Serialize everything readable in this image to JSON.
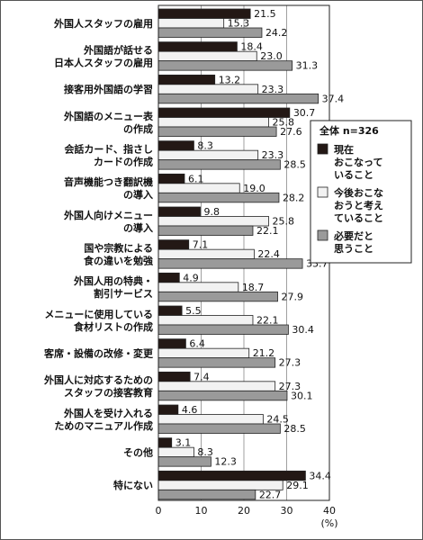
{
  "chart_data": {
    "type": "bar",
    "orientation": "horizontal",
    "categories": [
      [
        "外国人スタッフの雇用"
      ],
      [
        "外国語が話せる",
        "日本人スタッフの雇用"
      ],
      [
        "接客用外国語の学習"
      ],
      [
        "外国語のメニュー表",
        "の作成"
      ],
      [
        "会話カード、指さし",
        "カードの作成"
      ],
      [
        "音声機能つき翻訳機",
        "の導入"
      ],
      [
        "外国人向けメニュー",
        "の導入"
      ],
      [
        "国や宗教による",
        "食の違いを勉強"
      ],
      [
        "外国人用の特典・",
        "割引サービス"
      ],
      [
        "メニューに使用している",
        "食材リストの作成"
      ],
      [
        "客席・設備の改修・変更"
      ],
      [
        "外国人に対応するための",
        "スタッフの接客教育"
      ],
      [
        "外国人を受け入れる",
        "ためのマニュアル作成"
      ],
      [
        "その他"
      ],
      [
        "特にない"
      ]
    ],
    "series": [
      {
        "name": "現在おこなっていること",
        "color": "#231815",
        "values": [
          21.5,
          18.4,
          13.2,
          30.7,
          8.3,
          6.1,
          9.8,
          7.1,
          4.9,
          5.5,
          6.4,
          7.4,
          4.6,
          3.1,
          34.4
        ]
      },
      {
        "name": "今後おこなおうと考えていること",
        "color": "#f2f2f2",
        "values": [
          15.3,
          23.0,
          23.3,
          25.8,
          23.3,
          19.0,
          25.8,
          22.4,
          18.7,
          22.1,
          21.2,
          27.3,
          24.5,
          8.3,
          29.1
        ]
      },
      {
        "name": "必要だと思うこと",
        "color": "#9a9a9a",
        "values": [
          24.2,
          31.3,
          37.4,
          27.6,
          28.5,
          28.2,
          22.1,
          33.7,
          27.9,
          30.4,
          27.3,
          30.1,
          28.5,
          12.3,
          22.7
        ]
      }
    ],
    "xlim": [
      0,
      40
    ],
    "xticks": [
      0,
      10,
      20,
      30,
      40
    ],
    "xunit": "(%)",
    "legend": {
      "title": "全体 n=326",
      "labels": [
        [
          "現在",
          "おこなって",
          "いること"
        ],
        [
          "今後おこな",
          "おうと考え",
          "ていること"
        ],
        [
          "必要だと",
          "思うこと"
        ]
      ],
      "placement": "right"
    },
    "grid": true
  }
}
